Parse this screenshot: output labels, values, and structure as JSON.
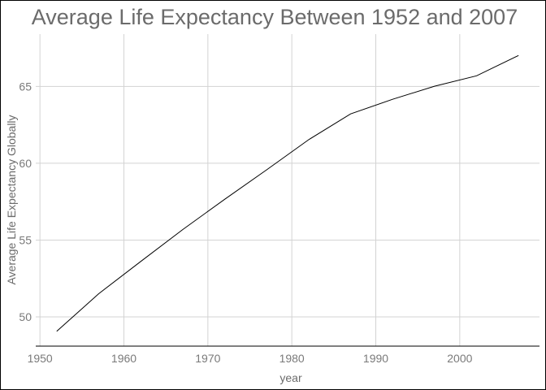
{
  "chart_data": {
    "type": "line",
    "title": "Average Life Expectancy Between 1952 and 2007",
    "xlabel": "year",
    "ylabel": "Average Life Expectancy Globally",
    "xlim": [
      1949.5,
      2009.5
    ],
    "ylim": [
      48.1,
      68.4
    ],
    "xticks": [
      1950,
      1960,
      1970,
      1980,
      1990,
      2000
    ],
    "yticks": [
      50,
      55,
      60,
      65
    ],
    "grid": true,
    "colors": {
      "line": "#000000",
      "grid": "#d3d3d3",
      "text": "#7a7a7a"
    },
    "series": [
      {
        "x": [
          1952,
          1957,
          1962,
          1967,
          1972,
          1977,
          1982,
          1987,
          1992,
          1997,
          2002,
          2007
        ],
        "y": [
          49.06,
          51.51,
          53.61,
          55.68,
          57.65,
          59.57,
          61.53,
          63.21,
          64.16,
          65.01,
          65.69,
          67.01
        ]
      }
    ]
  }
}
